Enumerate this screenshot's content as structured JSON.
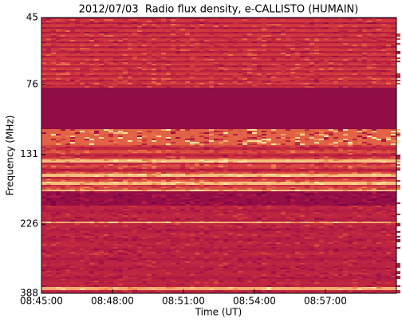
{
  "chart_data": {
    "type": "spectrogram",
    "title": "2012/07/03  Radio flux density, e-CALLISTO (HUMAIN)",
    "xlabel": "Time (UT)",
    "ylabel": "Frequency (MHz)",
    "xlim": [
      "08:45:00",
      "09:00:00"
    ],
    "xticks": [
      "08:45:00",
      "08:48:00",
      "08:51:00",
      "08:54:00",
      "08:57:00"
    ],
    "ylim": [
      388,
      45
    ],
    "yscale": "log",
    "yticks": [
      45,
      76,
      131,
      226,
      388
    ]
  }
}
